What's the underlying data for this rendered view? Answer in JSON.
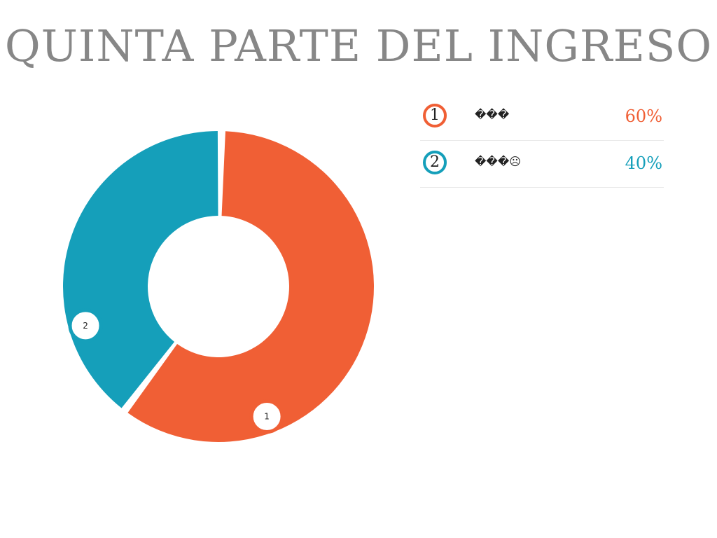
{
  "chart_data": {
    "type": "pie",
    "donut": true,
    "title": "QUINTA PARTE DEL INGRESO",
    "slices": [
      {
        "id": "1",
        "label": "���",
        "value": 60,
        "value_label": "60%",
        "color": "#f05f35"
      },
      {
        "id": "2",
        "label": "���☹",
        "value": 40,
        "value_label": "40%",
        "color": "#159fba"
      }
    ],
    "legend": "right"
  }
}
